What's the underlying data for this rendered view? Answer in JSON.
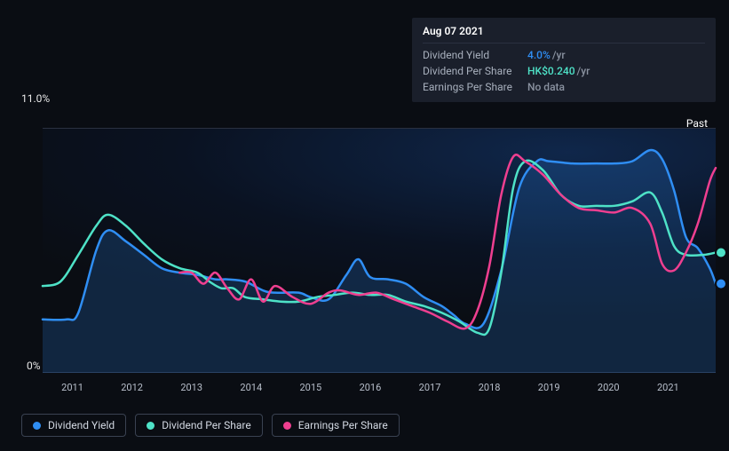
{
  "chart": {
    "type": "line",
    "background_color": "#0a0d13",
    "plot_gradient_center": "#143c78",
    "y_axis": {
      "label_top": "11.0%",
      "label_bottom": "0%",
      "ylim": [
        0,
        11
      ],
      "ticks": [
        0,
        11
      ]
    },
    "x_axis": {
      "range": [
        2010.5,
        2021.8
      ],
      "ticks": [
        2011,
        2012,
        2013,
        2014,
        2015,
        2016,
        2017,
        2018,
        2019,
        2020,
        2021
      ]
    },
    "past_label": "Past",
    "grid_color": "#2a3040",
    "series": [
      {
        "id": "dividend_yield",
        "label": "Dividend Yield",
        "color": "#2f8ef4",
        "has_fill": true,
        "fill_color": "rgba(47,142,244,0.20)",
        "line_width": 2.5,
        "points": [
          [
            2010.5,
            2.4
          ],
          [
            2010.9,
            2.4
          ],
          [
            2011.1,
            2.7
          ],
          [
            2011.4,
            5.5
          ],
          [
            2011.6,
            6.4
          ],
          [
            2011.9,
            5.9
          ],
          [
            2012.2,
            5.3
          ],
          [
            2012.5,
            4.7
          ],
          [
            2012.8,
            4.5
          ],
          [
            2013.1,
            4.4
          ],
          [
            2013.4,
            4.2
          ],
          [
            2013.6,
            4.2
          ],
          [
            2013.9,
            4.1
          ],
          [
            2014.2,
            3.7
          ],
          [
            2014.4,
            3.6
          ],
          [
            2014.8,
            3.6
          ],
          [
            2015.0,
            3.4
          ],
          [
            2015.3,
            3.3
          ],
          [
            2015.6,
            4.4
          ],
          [
            2015.8,
            5.1
          ],
          [
            2016.0,
            4.3
          ],
          [
            2016.3,
            4.2
          ],
          [
            2016.6,
            4.0
          ],
          [
            2016.9,
            3.4
          ],
          [
            2017.2,
            3.0
          ],
          [
            2017.4,
            2.6
          ],
          [
            2017.6,
            2.2
          ],
          [
            2017.9,
            2.2
          ],
          [
            2018.2,
            4.6
          ],
          [
            2018.5,
            8.3
          ],
          [
            2018.8,
            9.5
          ],
          [
            2019.0,
            9.5
          ],
          [
            2019.4,
            9.4
          ],
          [
            2019.8,
            9.4
          ],
          [
            2020.1,
            9.4
          ],
          [
            2020.4,
            9.5
          ],
          [
            2020.7,
            10.0
          ],
          [
            2020.9,
            9.6
          ],
          [
            2021.1,
            8.2
          ],
          [
            2021.3,
            6.1
          ],
          [
            2021.5,
            5.6
          ],
          [
            2021.7,
            4.7
          ],
          [
            2021.8,
            4.0
          ]
        ]
      },
      {
        "id": "dividend_per_share",
        "label": "Dividend Per Share",
        "color": "#4ee2c7",
        "has_fill": false,
        "line_width": 2.5,
        "points": [
          [
            2010.5,
            3.9
          ],
          [
            2010.8,
            4.1
          ],
          [
            2011.1,
            5.3
          ],
          [
            2011.4,
            6.6
          ],
          [
            2011.6,
            7.1
          ],
          [
            2011.9,
            6.6
          ],
          [
            2012.2,
            5.8
          ],
          [
            2012.5,
            5.1
          ],
          [
            2012.8,
            4.7
          ],
          [
            2013.1,
            4.5
          ],
          [
            2013.3,
            4.1
          ],
          [
            2013.5,
            3.8
          ],
          [
            2013.7,
            3.8
          ],
          [
            2013.9,
            3.4
          ],
          [
            2014.2,
            3.3
          ],
          [
            2014.5,
            3.2
          ],
          [
            2014.8,
            3.2
          ],
          [
            2015.1,
            3.4
          ],
          [
            2015.4,
            3.5
          ],
          [
            2015.7,
            3.6
          ],
          [
            2016.0,
            3.5
          ],
          [
            2016.3,
            3.5
          ],
          [
            2016.6,
            3.2
          ],
          [
            2016.9,
            3.0
          ],
          [
            2017.2,
            2.7
          ],
          [
            2017.5,
            2.3
          ],
          [
            2017.8,
            1.8
          ],
          [
            2018.0,
            2.0
          ],
          [
            2018.2,
            4.5
          ],
          [
            2018.4,
            8.3
          ],
          [
            2018.6,
            9.5
          ],
          [
            2018.9,
            9.1
          ],
          [
            2019.2,
            8.0
          ],
          [
            2019.5,
            7.5
          ],
          [
            2019.8,
            7.5
          ],
          [
            2020.1,
            7.5
          ],
          [
            2020.4,
            7.7
          ],
          [
            2020.7,
            8.1
          ],
          [
            2020.9,
            7.2
          ],
          [
            2021.1,
            5.7
          ],
          [
            2021.3,
            5.3
          ],
          [
            2021.6,
            5.3
          ],
          [
            2021.8,
            5.4
          ]
        ]
      },
      {
        "id": "earnings_per_share",
        "label": "Earnings Per Share",
        "color": "#ef3f90",
        "has_fill": false,
        "line_width": 2.5,
        "points": [
          [
            2012.8,
            4.5
          ],
          [
            2013.0,
            4.5
          ],
          [
            2013.2,
            4.0
          ],
          [
            2013.4,
            4.5
          ],
          [
            2013.6,
            3.8
          ],
          [
            2013.8,
            3.3
          ],
          [
            2014.0,
            4.2
          ],
          [
            2014.2,
            3.2
          ],
          [
            2014.4,
            3.9
          ],
          [
            2014.7,
            3.4
          ],
          [
            2015.0,
            3.1
          ],
          [
            2015.3,
            3.6
          ],
          [
            2015.5,
            3.7
          ],
          [
            2015.8,
            3.5
          ],
          [
            2016.1,
            3.6
          ],
          [
            2016.4,
            3.3
          ],
          [
            2016.7,
            3.0
          ],
          [
            2017.0,
            2.7
          ],
          [
            2017.3,
            2.3
          ],
          [
            2017.6,
            2.0
          ],
          [
            2017.8,
            2.8
          ],
          [
            2018.0,
            4.8
          ],
          [
            2018.2,
            8.0
          ],
          [
            2018.4,
            9.7
          ],
          [
            2018.6,
            9.5
          ],
          [
            2018.9,
            8.9
          ],
          [
            2019.2,
            8.0
          ],
          [
            2019.5,
            7.4
          ],
          [
            2019.8,
            7.3
          ],
          [
            2020.1,
            7.2
          ],
          [
            2020.4,
            7.4
          ],
          [
            2020.7,
            6.7
          ],
          [
            2020.9,
            4.9
          ],
          [
            2021.1,
            4.6
          ],
          [
            2021.3,
            5.4
          ],
          [
            2021.5,
            6.7
          ],
          [
            2021.7,
            8.6
          ],
          [
            2021.8,
            9.2
          ]
        ]
      }
    ],
    "tooltip": {
      "date": "Aug 07 2021",
      "rows": [
        {
          "label": "Dividend Yield",
          "value": "4.0%",
          "unit": "/yr",
          "value_color": "#2f8ef4"
        },
        {
          "label": "Dividend Per Share",
          "value": "HK$0.240",
          "unit": "/yr",
          "value_color": "#4ee2c7"
        },
        {
          "label": "Earnings Per Share",
          "value": "No data",
          "unit": "",
          "value_color": "#8a92a0"
        }
      ]
    },
    "end_markers": [
      {
        "color": "#4ee2c7",
        "y": 5.4
      },
      {
        "color": "#2f8ef4",
        "y": 4.0
      }
    ]
  },
  "legend": [
    {
      "label": "Dividend Yield",
      "color": "#2f8ef4"
    },
    {
      "label": "Dividend Per Share",
      "color": "#4ee2c7"
    },
    {
      "label": "Earnings Per Share",
      "color": "#ef3f90"
    }
  ]
}
